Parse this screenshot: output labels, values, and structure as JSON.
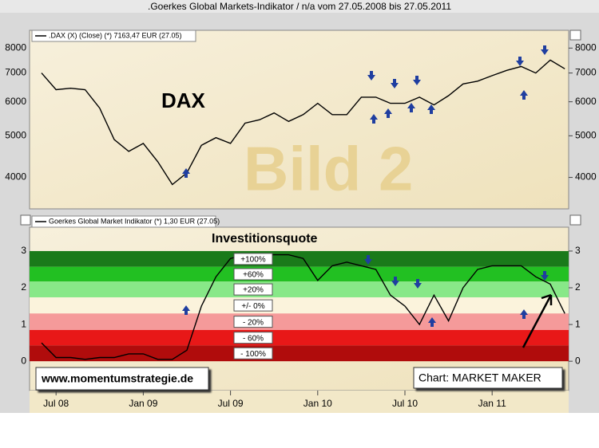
{
  "chart_data": [
    {
      "type": "line",
      "title": ".Goerkes Global Markets-Indikator / n/a vom 27.05.2008 bis 27.05.2011",
      "annotations": [
        "DAX",
        "Bild 2"
      ],
      "log_scale": true,
      "ylim": [
        3380,
        8800
      ],
      "yticks": [
        4000,
        5000,
        6000,
        7000,
        8000
      ],
      "series": [
        {
          "name": ".DAX (X) (Close) (*) 7163,47 EUR (27.05)",
          "color": "#000000",
          "values": [
            7000,
            6400,
            6450,
            6400,
            5800,
            4900,
            4600,
            4800,
            4350,
            3850,
            4100,
            4750,
            4950,
            4800,
            5350,
            5450,
            5650,
            5400,
            5600,
            5950,
            5600,
            5600,
            6150,
            6150,
            5950,
            5950,
            6150,
            5900,
            6200,
            6600,
            6700,
            6900,
            7100,
            7250,
            7000,
            7500,
            7160
          ]
        }
      ]
    },
    {
      "type": "line",
      "subtitle": "Investitionsquote",
      "annotations": [
        "www.momentumstrategie.de",
        "Chart: MARKET MAKER"
      ],
      "categories": [
        null,
        "Jul 08",
        null,
        null,
        null,
        null,
        null,
        "Jan 09",
        null,
        null,
        null,
        null,
        null,
        "Jul 09",
        null,
        null,
        null,
        null,
        null,
        "Jan 10",
        null,
        null,
        null,
        null,
        null,
        "Jul 10",
        null,
        null,
        null,
        null,
        null,
        "Jan 11",
        null,
        null,
        null,
        null,
        null
      ],
      "ylim": [
        -0.8,
        3.65
      ],
      "yticks": [
        0,
        1,
        2,
        3
      ],
      "bands": [
        {
          "label": "+100%",
          "from": 2.57,
          "to": 3,
          "color": "#1a7a1a"
        },
        {
          "label": "+60%",
          "from": 2.17,
          "to": 2.57,
          "color": "#22c022"
        },
        {
          "label": "+20%",
          "from": 1.74,
          "to": 2.17,
          "color": "#88e888"
        },
        {
          "label": "+/- 0%",
          "from": 1.3,
          "to": 1.74,
          "color": "#fbf3dc"
        },
        {
          "label": "- 20%",
          "from": 0.85,
          "to": 1.3,
          "color": "#f59a9a"
        },
        {
          "label": "- 60%",
          "from": 0.43,
          "to": 0.85,
          "color": "#e81818"
        },
        {
          "label": "- 100%",
          "from": 0,
          "to": 0.43,
          "color": "#b00c0c"
        }
      ],
      "series": [
        {
          "name": "Goerkes Global Market Indikator (*) 1,30 EUR (27.05)",
          "color": "#000000",
          "values": [
            0.5,
            0.1,
            0.1,
            0.05,
            0.1,
            0.1,
            0.2,
            0.2,
            0.05,
            0.05,
            0.3,
            1.5,
            2.3,
            2.8,
            2.9,
            2.9,
            2.9,
            2.9,
            2.8,
            2.2,
            2.6,
            2.7,
            2.6,
            2.5,
            1.8,
            1.5,
            1.0,
            1.8,
            1.1,
            2.0,
            2.5,
            2.6,
            2.6,
            2.6,
            2.3,
            2.1,
            1.3
          ]
        }
      ]
    }
  ]
}
